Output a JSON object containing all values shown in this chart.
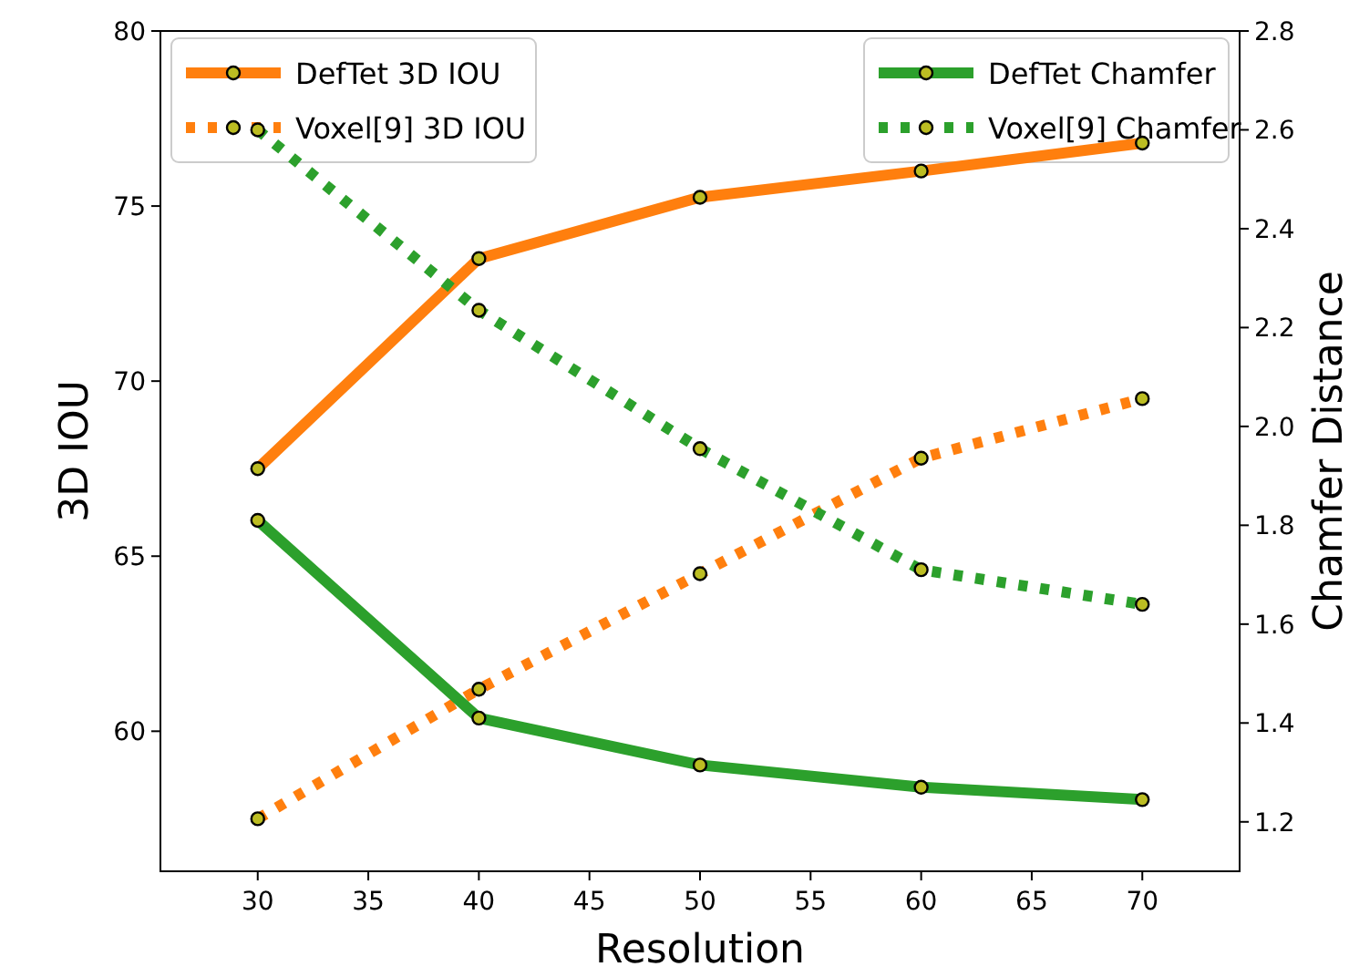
{
  "chart_data": {
    "type": "line",
    "xlabel": "Resolution",
    "ylabel": "3D IOU",
    "y2label": "Chamfer Distance",
    "x": [
      30,
      40,
      50,
      60,
      70
    ],
    "series": [
      {
        "name": "DefTet 3D IOU",
        "color": "#ff7f0e",
        "line_style": "solid",
        "values": [
          67.5,
          73.5,
          75.25,
          76.0,
          76.8
        ]
      },
      {
        "name": "Voxel[9] 3D IOU",
        "color": "#ff7f0e",
        "line_style": "dotted",
        "values": [
          57.5,
          61.2,
          64.5,
          67.8,
          69.5
        ]
      },
      {
        "name": "DefTet Chamfer",
        "color": "#2ca02c",
        "line_style": "solid",
        "axis": "y2",
        "values": [
          1.81,
          1.41,
          1.315,
          1.27,
          1.245
        ]
      },
      {
        "name": "Voxel[9] Chamfer",
        "color": "#2ca02c",
        "line_style": "dotted",
        "axis": "y2",
        "values": [
          2.6,
          2.235,
          1.955,
          1.71,
          1.64
        ]
      }
    ],
    "xlim": [
      25.6,
      74.4
    ],
    "xticks": [
      30,
      35,
      40,
      45,
      50,
      55,
      60,
      65,
      70
    ],
    "ylim": [
      56,
      80
    ],
    "yticks": [
      60,
      65,
      70,
      75,
      80
    ],
    "y2lim": [
      1.1,
      2.8
    ],
    "y2ticks": [
      {
        "value": 1.2,
        "label": "1.2"
      },
      {
        "value": 1.4,
        "label": "1.4"
      },
      {
        "value": 1.6,
        "label": "1.6"
      },
      {
        "value": 1.8,
        "label": "1.8"
      },
      {
        "value": 2.0,
        "label": "2.0"
      },
      {
        "value": 2.2,
        "label": "2.2"
      },
      {
        "value": 2.4,
        "label": "2.4"
      },
      {
        "value": 2.6,
        "label": "2.6"
      },
      {
        "value": 2.8,
        "label": "2.8"
      }
    ],
    "marker": "circle",
    "legend": "top",
    "grid": false
  }
}
